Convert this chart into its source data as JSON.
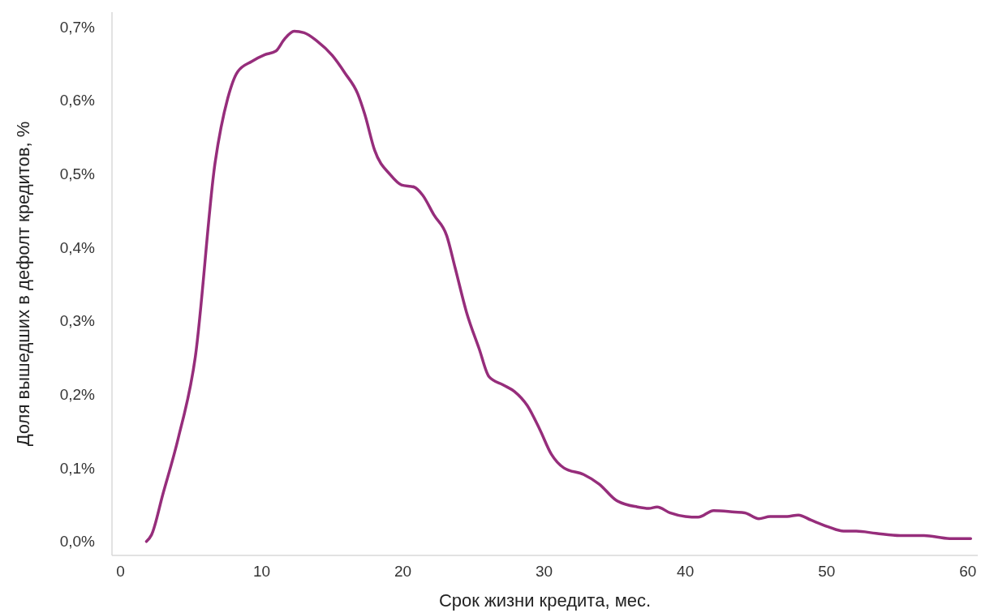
{
  "chart_data": {
    "type": "line",
    "xlabel": "Срок жизни кредита, мес.",
    "ylabel": "Доля вышедших в дефолт кредитов, %",
    "xlim": [
      -0.6,
      60.7
    ],
    "xticks": [
      0,
      10,
      20,
      30,
      40,
      50,
      60
    ],
    "ylim": [
      -0.019,
      0.72
    ],
    "yticks": [
      {
        "value": 0,
        "label": "0,0%"
      },
      {
        "value": 0.1,
        "label": "0,1%"
      },
      {
        "value": 0.2,
        "label": "0,2%"
      },
      {
        "value": 0.3,
        "label": "0,3%"
      },
      {
        "value": 0.4,
        "label": "0,4%"
      },
      {
        "value": 0.5,
        "label": "0,5%"
      },
      {
        "value": 0.6,
        "label": "0,6%"
      },
      {
        "value": 0.7,
        "label": "0,7%"
      }
    ],
    "grid": false,
    "marker": "none",
    "line_style": "solid",
    "series": [
      {
        "color": "#962d7b",
        "x": [
          1.84,
          2.2,
          3.0,
          4.1,
          5.3,
          6.7,
          7.6,
          8.3,
          9.3,
          10.2,
          11.0,
          11.6,
          12.3,
          13.0,
          13.9,
          15.0,
          15.9,
          16.8,
          17.3,
          18.0,
          19.1,
          19.9,
          20.8,
          21.4,
          22.2,
          23.1,
          23.7,
          24.5,
          25.4,
          26.1,
          27.1,
          27.9,
          28.8,
          29.7,
          30.5,
          31.4,
          32.8,
          33.9,
          35.1,
          36.6,
          37.4,
          38.0,
          38.9,
          40.0,
          40.9,
          42.0,
          43.5,
          44.2,
          45.2,
          46.0,
          47.2,
          48.0,
          48.9,
          50.1,
          51.2,
          52.1,
          53.5,
          55.2,
          56.9,
          58.7,
          60.2
        ],
        "values": [
          0,
          0.009,
          0.064,
          0.141,
          0.251,
          0.515,
          0.603,
          0.639,
          0.653,
          0.662,
          0.667,
          0.683,
          0.694,
          0.692,
          0.681,
          0.661,
          0.637,
          0.609,
          0.581,
          0.532,
          0.499,
          0.485,
          0.482,
          0.471,
          0.444,
          0.416,
          0.372,
          0.312,
          0.262,
          0.224,
          0.213,
          0.204,
          0.185,
          0.152,
          0.119,
          0.1,
          0.091,
          0.078,
          0.056,
          0.047,
          0.045,
          0.047,
          0.039,
          0.034,
          0.033,
          0.042,
          0.04,
          0.039,
          0.031,
          0.034,
          0.034,
          0.036,
          0.029,
          0.02,
          0.014,
          0.014,
          0.011,
          0.008,
          0.008,
          0.004,
          0.004
        ]
      }
    ]
  }
}
